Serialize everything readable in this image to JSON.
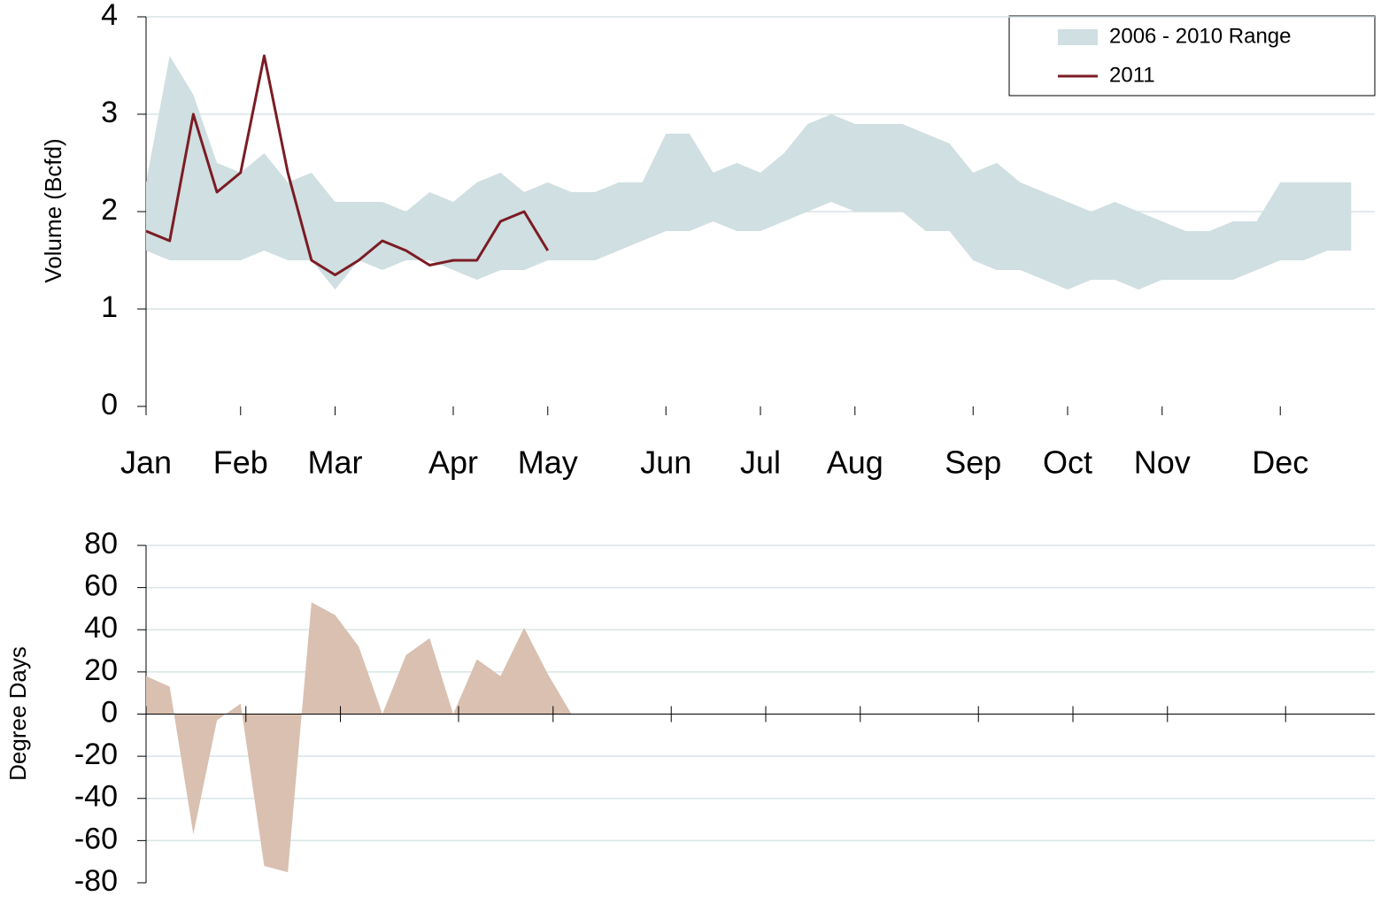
{
  "chart_data": [
    {
      "type": "line",
      "ylabel": "Volume (Bcfd)",
      "categories": [
        "Jan",
        null,
        null,
        null,
        "Feb",
        null,
        null,
        null,
        "Mar",
        null,
        null,
        null,
        null,
        "Apr",
        null,
        null,
        null,
        "May",
        null,
        null,
        null,
        null,
        "Jun",
        null,
        null,
        null,
        "Jul",
        null,
        null,
        null,
        "Aug",
        null,
        null,
        null,
        null,
        "Sep",
        null,
        null,
        null,
        "Oct",
        null,
        null,
        null,
        "Nov",
        null,
        null,
        null,
        null,
        "Dec",
        null,
        null,
        null
      ],
      "series": [
        {
          "name": "2006 - 2010 Range",
          "color": "#d0dfe1",
          "low": [
            1.6,
            1.5,
            1.5,
            1.5,
            1.5,
            1.6,
            1.5,
            1.5,
            1.2,
            1.5,
            1.4,
            1.5,
            1.5,
            1.4,
            1.3,
            1.4,
            1.4,
            1.5,
            1.5,
            1.5,
            1.6,
            1.7,
            1.8,
            1.8,
            1.9,
            1.8,
            1.8,
            1.9,
            2.0,
            2.1,
            2.0,
            2.0,
            2.0,
            1.8,
            1.8,
            1.5,
            1.4,
            1.4,
            1.3,
            1.2,
            1.3,
            1.3,
            1.2,
            1.3,
            1.3,
            1.3,
            1.3,
            1.4,
            1.5,
            1.5,
            1.6,
            1.6
          ],
          "high": [
            2.3,
            3.6,
            3.2,
            2.5,
            2.4,
            2.6,
            2.3,
            2.4,
            2.1,
            2.1,
            2.1,
            2.0,
            2.2,
            2.1,
            2.3,
            2.4,
            2.2,
            2.3,
            2.2,
            2.2,
            2.3,
            2.3,
            2.8,
            2.8,
            2.4,
            2.5,
            2.4,
            2.6,
            2.9,
            3.0,
            2.9,
            2.9,
            2.9,
            2.8,
            2.7,
            2.4,
            2.5,
            2.3,
            2.2,
            2.1,
            2.0,
            2.1,
            2.0,
            1.9,
            1.8,
            1.8,
            1.9,
            1.9,
            2.3,
            2.3,
            2.3,
            2.3
          ]
        },
        {
          "name": "2011",
          "color": "#7b1c24",
          "values": [
            1.8,
            1.7,
            3.0,
            2.2,
            2.4,
            3.6,
            2.4,
            1.5,
            1.35,
            1.5,
            1.7,
            1.6,
            1.45,
            1.5,
            1.5,
            1.9,
            2.0,
            1.6,
            null,
            null,
            null,
            null,
            null,
            null,
            null,
            null,
            null,
            null,
            null,
            null,
            null,
            null,
            null,
            null,
            null,
            null,
            null,
            null,
            null,
            null,
            null,
            null,
            null,
            null,
            null,
            null,
            null,
            null,
            null,
            null,
            null,
            null
          ]
        }
      ],
      "ylim": [
        0,
        4
      ],
      "yticks": [
        0,
        1,
        2,
        3,
        4
      ],
      "grid": true,
      "legend": "top-right"
    },
    {
      "type": "area",
      "ylabel": "Degree Days",
      "categories": [
        null,
        null,
        null,
        null,
        null,
        null,
        null,
        null,
        null,
        null,
        null,
        null,
        null,
        null,
        null,
        null,
        null,
        null,
        null,
        null,
        null,
        null,
        null,
        null,
        null,
        null,
        null,
        null,
        null,
        null,
        null,
        null,
        null,
        null,
        null,
        null,
        null,
        null,
        null,
        null,
        null,
        null,
        null,
        null,
        null,
        null,
        null,
        null,
        null,
        null,
        null,
        null
      ],
      "values": [
        18,
        13,
        -57,
        -3,
        5,
        -72,
        -75,
        53,
        47,
        32,
        0,
        28,
        36,
        0,
        26,
        18,
        41,
        19,
        0,
        null,
        null,
        null,
        null,
        null,
        null,
        null,
        null,
        null,
        null,
        null,
        null,
        null,
        null,
        null,
        null,
        null,
        null,
        null,
        null,
        null,
        null,
        null,
        null,
        null,
        null,
        null,
        null,
        null,
        null,
        null,
        null,
        null
      ],
      "color": "#d9c0b0",
      "ylim": [
        -80,
        80
      ],
      "yticks": [
        -80,
        -60,
        -40,
        -20,
        0,
        20,
        40,
        60,
        80
      ],
      "grid": true
    }
  ]
}
